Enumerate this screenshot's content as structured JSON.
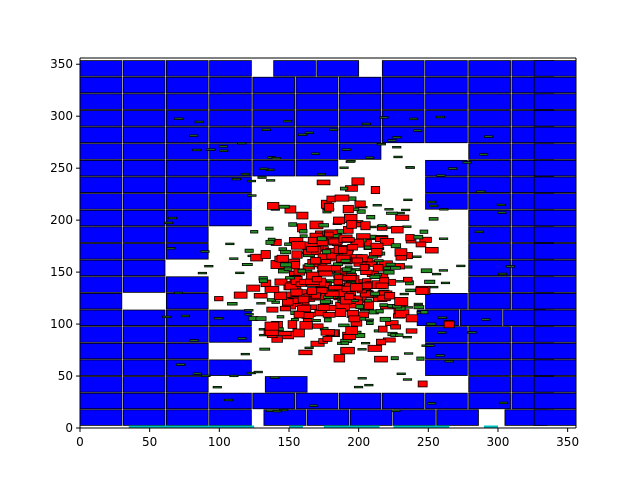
{
  "chart_data": {
    "type": "scatter",
    "title": "",
    "xlabel": "",
    "ylabel": "",
    "xlim": [
      0,
      356
    ],
    "ylim": [
      0,
      356
    ],
    "x_ticks": [
      0,
      50,
      100,
      150,
      200,
      250,
      300,
      350
    ],
    "y_ticks": [
      0,
      50,
      100,
      150,
      200,
      250,
      300,
      350
    ],
    "x_tick_labels": [
      "0",
      "50",
      "100",
      "150",
      "200",
      "250",
      "300",
      "350"
    ],
    "y_tick_labels": [
      "0",
      "50",
      "100",
      "150",
      "200",
      "250",
      "300",
      "350"
    ],
    "grid": false,
    "legend": "none",
    "colors": {
      "wall_brick": "#0000ff",
      "center_brick": "#ff0000",
      "small_brick": "#228b22",
      "floor_marks": "#00bfbf",
      "edge": "#000000"
    },
    "series": [
      {
        "brick_width": 30,
        "brick_height": 15,
        "rows": [
          {
            "y": 10,
            "x": [
              15,
              46,
              77,
              108,
              147,
              178,
              209,
              240,
              271,
              320,
              341
            ]
          },
          {
            "y": 26,
            "x": [
              15,
              46,
              77,
              108,
              139,
              170,
              201,
              232,
              263,
              294,
              325,
              341
            ]
          },
          {
            "y": 42,
            "x": [
              15,
              46,
              77,
              148,
              294,
              325,
              341
            ]
          },
          {
            "y": 58,
            "x": [
              15,
              46,
              77,
              108,
              263,
              294,
              325,
              341
            ]
          },
          {
            "y": 74,
            "x": [
              15,
              46,
              77,
              263,
              294,
              325,
              341
            ]
          },
          {
            "y": 90,
            "x": [
              15,
              46,
              77,
              108,
              263,
              294,
              325,
              341
            ]
          },
          {
            "y": 106,
            "x": [
              15,
              46,
              77,
              108,
              257,
              288,
              319,
              341
            ]
          },
          {
            "y": 122,
            "x": [
              15,
              77,
              263,
              294,
              325,
              341
            ]
          },
          {
            "y": 138,
            "x": [
              15,
              46,
              77,
              294,
              325,
              341
            ]
          },
          {
            "y": 154,
            "x": [
              15,
              46,
              294,
              325,
              341
            ]
          },
          {
            "y": 170,
            "x": [
              15,
              46,
              77,
              294,
              325,
              341
            ]
          },
          {
            "y": 186,
            "x": [
              15,
              46,
              77,
              294,
              325,
              341
            ]
          },
          {
            "y": 202,
            "x": [
              15,
              46,
              77,
              108,
              294,
              325,
              341
            ]
          },
          {
            "y": 218,
            "x": [
              15,
              46,
              77,
              108,
              263,
              294,
              325,
              341
            ]
          },
          {
            "y": 234,
            "x": [
              15,
              46,
              77,
              108,
              263,
              294,
              325,
              341
            ]
          },
          {
            "y": 250,
            "x": [
              15,
              46,
              77,
              108,
              139,
              170,
              263,
              294,
              325,
              341
            ]
          },
          {
            "y": 266,
            "x": [
              15,
              46,
              77,
              108,
              139,
              170,
              201,
              294,
              325,
              341
            ]
          },
          {
            "y": 282,
            "x": [
              15,
              46,
              77,
              108,
              139,
              170,
              201,
              232,
              263,
              294,
              325,
              341
            ]
          },
          {
            "y": 298,
            "x": [
              15,
              46,
              77,
              108,
              139,
              170,
              201,
              232,
              263,
              294,
              325,
              341
            ]
          },
          {
            "y": 314,
            "x": [
              15,
              46,
              77,
              108,
              139,
              170,
              201,
              232,
              263,
              294,
              325,
              341
            ]
          },
          {
            "y": 330,
            "x": [
              15,
              46,
              77,
              108,
              139,
              170,
              201,
              232,
              263,
              294,
              325,
              341
            ]
          },
          {
            "y": 346,
            "x": [
              15,
              46,
              77,
              108,
              154,
              185,
              232,
              263,
              294,
              325,
              341
            ]
          }
        ]
      },
      {
        "cluster": {
          "x_range": [
            95,
            265
          ],
          "y_range": [
            38,
            238
          ],
          "center": [
            185,
            145
          ],
          "points": 420,
          "brick_width_range": [
            6,
            10
          ],
          "brick_height_range": [
            4,
            8
          ]
        }
      },
      {
        "scatter": {
          "x_range": [
            60,
            310
          ],
          "y_range": [
            15,
            300
          ],
          "points": 160,
          "width": 6,
          "height": 1.5
        }
      },
      {
        "floor": {
          "y": 0,
          "segments": [
            [
              35,
              125
            ],
            [
              150,
              160
            ],
            [
              175,
              215
            ],
            [
              225,
              265
            ],
            [
              290,
              300
            ]
          ]
        }
      }
    ]
  }
}
